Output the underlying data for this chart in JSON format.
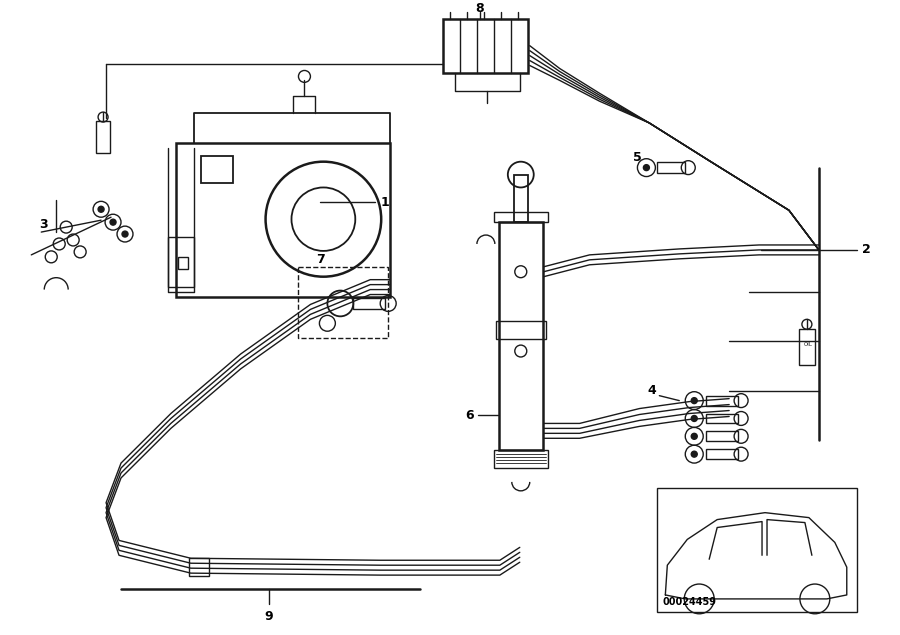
{
  "bg_color": "#ffffff",
  "line_color": "#1a1a1a",
  "fig_width": 9.0,
  "fig_height": 6.35,
  "dpi": 100,
  "diagram_number": "00024459"
}
